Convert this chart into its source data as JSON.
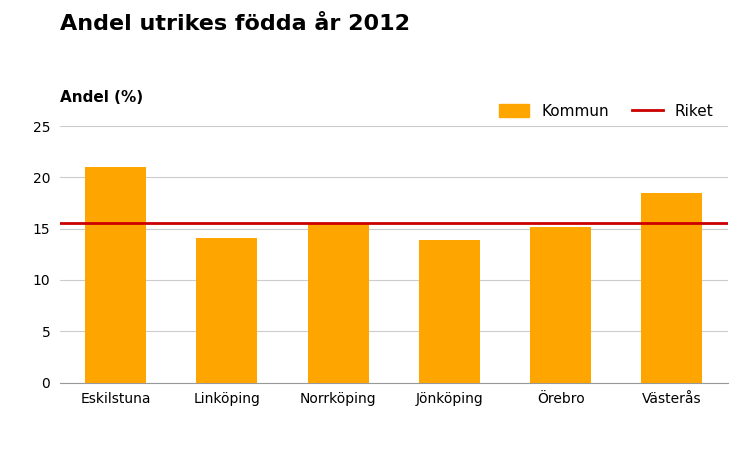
{
  "title": "Andel utrikes födda år 2012",
  "ylabel": "Andel (%)",
  "categories": [
    "Eskilstuna",
    "Linköping",
    "Norrköping",
    "Jönköping",
    "Örebro",
    "Västerås"
  ],
  "values": [
    21.0,
    14.1,
    15.5,
    13.9,
    15.2,
    18.5
  ],
  "bar_color": "#FFA500",
  "riket_value": 15.5,
  "riket_color": "#CC0000",
  "ylim": [
    0,
    25
  ],
  "yticks": [
    0,
    5,
    10,
    15,
    20,
    25
  ],
  "legend_kommun": "Kommun",
  "legend_riket": "Riket",
  "title_fontsize": 16,
  "label_fontsize": 11,
  "tick_fontsize": 10,
  "background_color": "#ffffff",
  "grid_color": "#cccccc",
  "bar_width": 0.55
}
